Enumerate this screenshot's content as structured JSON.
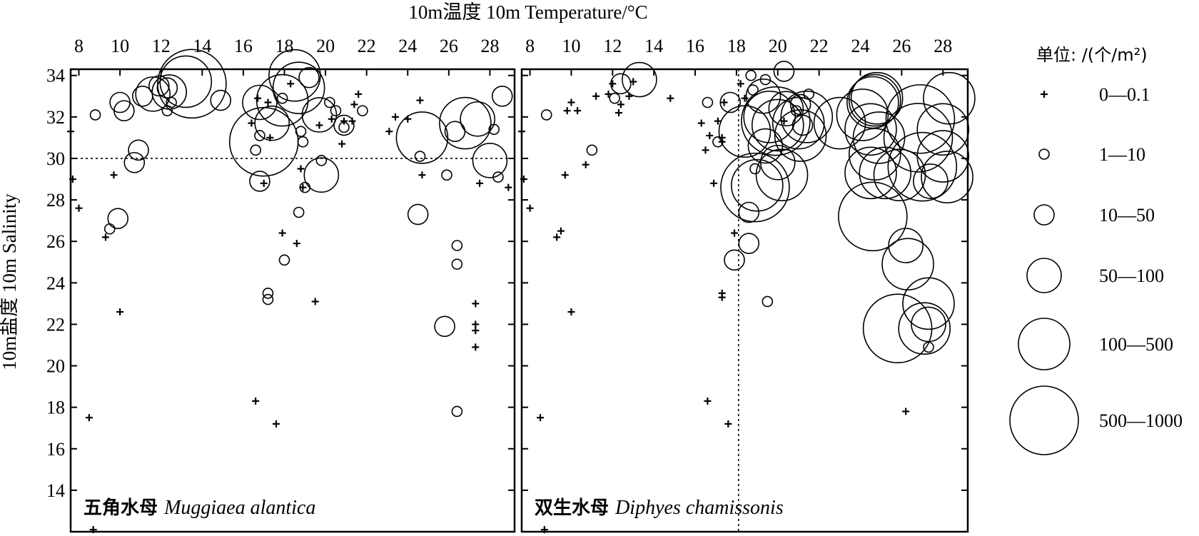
{
  "chart_data": {
    "type": "scatter",
    "x_axis_label": "10m温度 10m Temperature/°C",
    "y_axis_label": "10m盐度 10m Salinity",
    "x_ticks": [
      8,
      10,
      12,
      14,
      16,
      18,
      20,
      22,
      24,
      26,
      28
    ],
    "y_ticks": [
      14,
      16,
      18,
      20,
      22,
      24,
      26,
      28,
      30,
      32,
      34
    ],
    "xlim": [
      7.6,
      29.2
    ],
    "ylim": [
      12,
      34.3
    ],
    "legend": {
      "title": "单位: /(个/m²)",
      "placement": "right",
      "classes": [
        {
          "label": "0—0.1",
          "symbol": "plus"
        },
        {
          "label": "1—10",
          "symbol": "circle",
          "radius": 7
        },
        {
          "label": "10—50",
          "symbol": "circle",
          "radius": 14
        },
        {
          "label": "50—100",
          "symbol": "circle",
          "radius": 24
        },
        {
          "label": "100—500",
          "symbol": "circle",
          "radius": 36
        },
        {
          "label": "500—1000",
          "symbol": "circle",
          "radius": 48
        }
      ]
    },
    "panels": [
      {
        "cn_name": "五角水母",
        "latin_name": "Muggiaea alantica",
        "ref_line": {
          "orientation": "horizontal",
          "value": 30
        },
        "points": [
          [
            7.6,
            31.3,
            0
          ],
          [
            7.7,
            29.0,
            0
          ],
          [
            8.0,
            27.6,
            0
          ],
          [
            8.5,
            17.5,
            0
          ],
          [
            8.7,
            12.1,
            0
          ],
          [
            9.3,
            26.2,
            0
          ],
          [
            9.7,
            29.2,
            0
          ],
          [
            10.0,
            22.6,
            0
          ],
          [
            20.8,
            30.7,
            0
          ],
          [
            20.9,
            31.8,
            0
          ],
          [
            21.3,
            31.8,
            0
          ],
          [
            21.4,
            32.6,
            0
          ],
          [
            21.6,
            33.1,
            0
          ],
          [
            23.1,
            31.3,
            0
          ],
          [
            23.4,
            32.0,
            0
          ],
          [
            24.0,
            31.9,
            0
          ],
          [
            24.6,
            32.8,
            0
          ],
          [
            24.7,
            29.2,
            0
          ],
          [
            27.3,
            23.0,
            0
          ],
          [
            27.3,
            22.0,
            0
          ],
          [
            27.3,
            21.7,
            0
          ],
          [
            27.3,
            20.9,
            0
          ],
          [
            27.5,
            28.8,
            0
          ],
          [
            28.9,
            28.6,
            0
          ],
          [
            16.4,
            31.7,
            0
          ],
          [
            16.6,
            18.3,
            0
          ],
          [
            16.7,
            32.9,
            0
          ],
          [
            17.0,
            28.8,
            0
          ],
          [
            17.2,
            32.7,
            0
          ],
          [
            17.3,
            31.0,
            0
          ],
          [
            17.6,
            17.2,
            0
          ],
          [
            17.9,
            26.4,
            0
          ],
          [
            18.3,
            33.6,
            0
          ],
          [
            18.6,
            25.9,
            0
          ],
          [
            18.8,
            29.5,
            0
          ],
          [
            18.9,
            28.6,
            0
          ],
          [
            19.5,
            23.1,
            0
          ],
          [
            19.7,
            31.6,
            0
          ],
          [
            20.3,
            31.9,
            0
          ],
          [
            8.8,
            32.1,
            1
          ],
          [
            9.5,
            26.6,
            1
          ],
          [
            16.6,
            30.4,
            1
          ],
          [
            16.8,
            31.1,
            1
          ],
          [
            17.2,
            23.5,
            1
          ],
          [
            17.2,
            23.2,
            1
          ],
          [
            17.9,
            32.9,
            1
          ],
          [
            18.0,
            25.1,
            1
          ],
          [
            18.7,
            27.4,
            1
          ],
          [
            18.8,
            31.3,
            1
          ],
          [
            18.9,
            30.8,
            1
          ],
          [
            19.0,
            28.6,
            1
          ],
          [
            19.8,
            29.9,
            1
          ],
          [
            20.2,
            32.7,
            1
          ],
          [
            20.5,
            32.3,
            1
          ],
          [
            20.9,
            31.5,
            1
          ],
          [
            21.8,
            32.3,
            1
          ],
          [
            24.6,
            30.1,
            1
          ],
          [
            25.9,
            29.2,
            1
          ],
          [
            26.4,
            25.8,
            1
          ],
          [
            26.4,
            24.9,
            1
          ],
          [
            26.4,
            17.8,
            1
          ],
          [
            28.4,
            29.1,
            1
          ],
          [
            28.2,
            31.4,
            1
          ],
          [
            12.3,
            32.3,
            1
          ],
          [
            12.5,
            32.7,
            1
          ],
          [
            9.9,
            27.1,
            2
          ],
          [
            10.0,
            32.7,
            2
          ],
          [
            10.2,
            32.3,
            2
          ],
          [
            10.7,
            29.8,
            2
          ],
          [
            10.9,
            30.4,
            2
          ],
          [
            11.1,
            33.0,
            2
          ],
          [
            11.9,
            33.5,
            2
          ],
          [
            12.3,
            33.4,
            2
          ],
          [
            14.9,
            32.8,
            2
          ],
          [
            16.8,
            28.9,
            2
          ],
          [
            19.2,
            33.9,
            2
          ],
          [
            20.9,
            31.6,
            2
          ],
          [
            24.5,
            27.3,
            2
          ],
          [
            25.8,
            21.9,
            2
          ],
          [
            26.3,
            31.3,
            2
          ],
          [
            28.6,
            33.0,
            2
          ],
          [
            11.6,
            33.1,
            3
          ],
          [
            12.4,
            33.2,
            3
          ],
          [
            16.8,
            32.7,
            3
          ],
          [
            17.4,
            31.7,
            3
          ],
          [
            19.7,
            32.1,
            3
          ],
          [
            19.8,
            29.2,
            3
          ],
          [
            27.4,
            31.9,
            3
          ],
          [
            28.0,
            29.9,
            3
          ],
          [
            13.2,
            33.7,
            4
          ],
          [
            17.9,
            32.8,
            4
          ],
          [
            18.5,
            34.0,
            4
          ],
          [
            18.7,
            33.4,
            4
          ],
          [
            24.7,
            31.0,
            4
          ],
          [
            26.8,
            31.7,
            4
          ],
          [
            17.0,
            30.8,
            5
          ],
          [
            13.5,
            33.6,
            5
          ]
        ]
      },
      {
        "cn_name": "双生水母",
        "latin_name": "Diphyes chamissonis",
        "ref_line": {
          "orientation": "vertical",
          "value": 18.1
        },
        "points": [
          [
            7.6,
            31.3,
            0
          ],
          [
            7.7,
            29.0,
            0
          ],
          [
            8.0,
            27.6,
            0
          ],
          [
            8.5,
            17.5,
            0
          ],
          [
            8.7,
            12.1,
            0
          ],
          [
            9.3,
            26.2,
            0
          ],
          [
            9.5,
            26.5,
            0
          ],
          [
            9.7,
            29.2,
            0
          ],
          [
            9.8,
            32.3,
            0
          ],
          [
            10.0,
            32.7,
            0
          ],
          [
            10.0,
            22.6,
            0
          ],
          [
            10.3,
            32.3,
            0
          ],
          [
            10.7,
            29.7,
            0
          ],
          [
            11.2,
            33.0,
            0
          ],
          [
            11.8,
            33.1,
            0
          ],
          [
            12.0,
            33.6,
            0
          ],
          [
            12.3,
            32.2,
            0
          ],
          [
            12.4,
            32.6,
            0
          ],
          [
            12.8,
            33.0,
            0
          ],
          [
            13.0,
            33.7,
            0
          ],
          [
            14.8,
            32.9,
            0
          ],
          [
            16.3,
            31.7,
            0
          ],
          [
            16.5,
            30.4,
            0
          ],
          [
            16.6,
            18.3,
            0
          ],
          [
            16.7,
            31.1,
            0
          ],
          [
            16.9,
            28.8,
            0
          ],
          [
            17.1,
            31.8,
            0
          ],
          [
            17.3,
            30.8,
            0
          ],
          [
            17.3,
            23.5,
            0
          ],
          [
            17.3,
            23.3,
            0
          ],
          [
            17.3,
            31.0,
            0
          ],
          [
            17.4,
            32.7,
            0
          ],
          [
            17.6,
            17.2,
            0
          ],
          [
            17.9,
            26.4,
            0
          ],
          [
            18.2,
            33.6,
            0
          ],
          [
            18.4,
            32.9,
            0
          ],
          [
            20.3,
            31.8,
            0
          ],
          [
            26.2,
            17.8,
            0
          ],
          [
            8.8,
            32.1,
            1
          ],
          [
            11.0,
            30.4,
            1
          ],
          [
            12.1,
            32.9,
            1
          ],
          [
            16.6,
            32.7,
            1
          ],
          [
            17.1,
            30.8,
            1
          ],
          [
            18.7,
            34.0,
            1
          ],
          [
            18.8,
            33.3,
            1
          ],
          [
            18.9,
            29.5,
            1
          ],
          [
            19.4,
            33.8,
            1
          ],
          [
            19.5,
            23.1,
            1
          ],
          [
            21.5,
            33.1,
            1
          ],
          [
            20.9,
            32.3,
            1
          ],
          [
            27.3,
            20.9,
            1
          ],
          [
            12.4,
            33.6,
            2
          ],
          [
            17.7,
            32.7,
            2
          ],
          [
            18.6,
            27.4,
            2
          ],
          [
            18.6,
            25.9,
            2
          ],
          [
            17.9,
            25.1,
            2
          ],
          [
            20.3,
            34.2,
            2
          ],
          [
            21.2,
            31.6,
            2
          ],
          [
            21.1,
            32.6,
            2
          ],
          [
            19.4,
            30.6,
            3
          ],
          [
            20.0,
            29.8,
            3
          ],
          [
            13.3,
            33.8,
            3
          ],
          [
            20.4,
            32.4,
            3
          ],
          [
            19.3,
            33.0,
            3
          ],
          [
            26.2,
            25.8,
            3
          ],
          [
            27.3,
            22.0,
            3
          ],
          [
            27.4,
            28.9,
            3
          ],
          [
            18.4,
            31.3,
            4
          ],
          [
            19.0,
            28.7,
            4
          ],
          [
            19.6,
            32.0,
            4
          ],
          [
            20.0,
            31.6,
            4
          ],
          [
            20.2,
            29.2,
            4
          ],
          [
            21.0,
            31.7,
            4
          ],
          [
            21.1,
            31.1,
            4
          ],
          [
            21.4,
            32.0,
            4
          ],
          [
            23.0,
            31.7,
            4
          ],
          [
            24.1,
            32.1,
            4
          ],
          [
            24.5,
            31.4,
            4
          ],
          [
            24.9,
            31.0,
            4
          ],
          [
            24.7,
            30.2,
            4
          ],
          [
            24.5,
            29.3,
            4
          ],
          [
            25.2,
            29.3,
            4
          ],
          [
            24.6,
            32.7,
            4
          ],
          [
            24.8,
            32.9,
            4
          ],
          [
            24.7,
            32.8,
            4
          ],
          [
            25.9,
            29.2,
            4
          ],
          [
            26.3,
            24.9,
            4
          ],
          [
            27.3,
            23.0,
            4
          ],
          [
            27.1,
            21.8,
            4
          ],
          [
            28.0,
            31.4,
            4
          ],
          [
            28.3,
            32.9,
            4
          ],
          [
            28.0,
            30.1,
            4
          ],
          [
            28.2,
            29.1,
            4
          ],
          [
            18.9,
            28.6,
            5
          ],
          [
            19.9,
            31.8,
            5
          ],
          [
            24.6,
            27.2,
            5
          ],
          [
            25.8,
            21.8,
            5
          ],
          [
            26.9,
            31.9,
            5
          ],
          [
            27.0,
            29.6,
            5
          ],
          [
            26.8,
            31.0,
            5
          ]
        ]
      }
    ]
  }
}
